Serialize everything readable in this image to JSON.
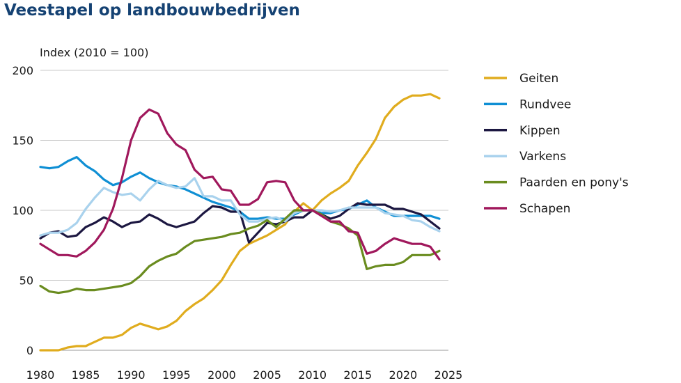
{
  "chart_data": {
    "type": "line",
    "title": "Veestapel op landbouwbedrijven",
    "ylabel": "Index (2010 = 100)",
    "xlabel": "",
    "xlim": [
      1980,
      2025
    ],
    "ylim": [
      0,
      200
    ],
    "x_ticks": [
      "1980",
      "1985",
      "1990",
      "1995",
      "2000",
      "2005",
      "2010",
      "2015",
      "2020",
      "2025"
    ],
    "y_ticks": [
      "0",
      "50",
      "100",
      "150",
      "200"
    ],
    "grid": "horizontal",
    "legend_position": "right",
    "x": [
      1980,
      1981,
      1982,
      1983,
      1984,
      1985,
      1986,
      1987,
      1988,
      1989,
      1990,
      1991,
      1992,
      1993,
      1994,
      1995,
      1996,
      1997,
      1998,
      1999,
      2000,
      2001,
      2002,
      2003,
      2004,
      2005,
      2006,
      2007,
      2008,
      2009,
      2010,
      2011,
      2012,
      2013,
      2014,
      2015,
      2016,
      2017,
      2018,
      2019,
      2020,
      2021,
      2022,
      2023,
      2024
    ],
    "series": [
      {
        "name": "Geiten",
        "color": "#e0ac1e",
        "values": [
          0,
          0,
          0,
          2,
          3,
          3,
          6,
          9,
          9,
          11,
          16,
          19,
          17,
          15,
          17,
          21,
          28,
          33,
          37,
          43,
          50,
          61,
          71,
          76,
          79,
          82,
          86,
          90,
          99,
          105,
          100,
          107,
          112,
          116,
          121,
          132,
          141,
          151,
          166,
          174,
          179,
          182,
          182,
          183,
          180
        ]
      },
      {
        "name": "Rundvee",
        "color": "#0f8fd4",
        "values": [
          131,
          130,
          131,
          135,
          138,
          132,
          128,
          122,
          118,
          120,
          124,
          127,
          123,
          120,
          118,
          117,
          115,
          112,
          109,
          106,
          104,
          102,
          99,
          94,
          94,
          95,
          94,
          94,
          97,
          100,
          100,
          98,
          98,
          100,
          101,
          104,
          107,
          102,
          99,
          96,
          96,
          96,
          96,
          96,
          94
        ]
      },
      {
        "name": "Kippen",
        "color": "#1c1741",
        "values": [
          80,
          84,
          85,
          81,
          82,
          88,
          91,
          95,
          92,
          88,
          91,
          92,
          97,
          94,
          90,
          88,
          90,
          92,
          98,
          103,
          102,
          99,
          99,
          77,
          84,
          91,
          90,
          92,
          95,
          95,
          100,
          97,
          94,
          96,
          101,
          105,
          104,
          104,
          104,
          101,
          101,
          99,
          97,
          92,
          87
        ]
      },
      {
        "name": "Varkens",
        "color": "#a9d2ed",
        "values": [
          82,
          84,
          84,
          86,
          91,
          101,
          109,
          116,
          113,
          111,
          112,
          107,
          115,
          121,
          118,
          116,
          117,
          123,
          110,
          110,
          107,
          107,
          97,
          92,
          92,
          94,
          95,
          92,
          98,
          100,
          100,
          100,
          99,
          100,
          102,
          102,
          102,
          102,
          98,
          97,
          96,
          93,
          92,
          88,
          85
        ]
      },
      {
        "name": "Paarden en pony's",
        "color": "#6a8c1f",
        "values": [
          46,
          42,
          41,
          42,
          44,
          43,
          43,
          44,
          45,
          46,
          48,
          53,
          60,
          64,
          67,
          69,
          74,
          78,
          79,
          80,
          81,
          83,
          84,
          87,
          89,
          93,
          88,
          94,
          100,
          100,
          100,
          97,
          92,
          90,
          87,
          82,
          58,
          60,
          61,
          61,
          63,
          68,
          68,
          68,
          71
        ]
      },
      {
        "name": "Schapen",
        "color": "#a0185c",
        "values": [
          76,
          72,
          68,
          68,
          67,
          71,
          77,
          86,
          101,
          123,
          150,
          166,
          172,
          169,
          155,
          147,
          143,
          129,
          123,
          124,
          115,
          114,
          104,
          104,
          108,
          120,
          121,
          120,
          107,
          100,
          100,
          96,
          92,
          92,
          85,
          84,
          69,
          71,
          76,
          80,
          78,
          76,
          76,
          74,
          65
        ]
      }
    ]
  }
}
